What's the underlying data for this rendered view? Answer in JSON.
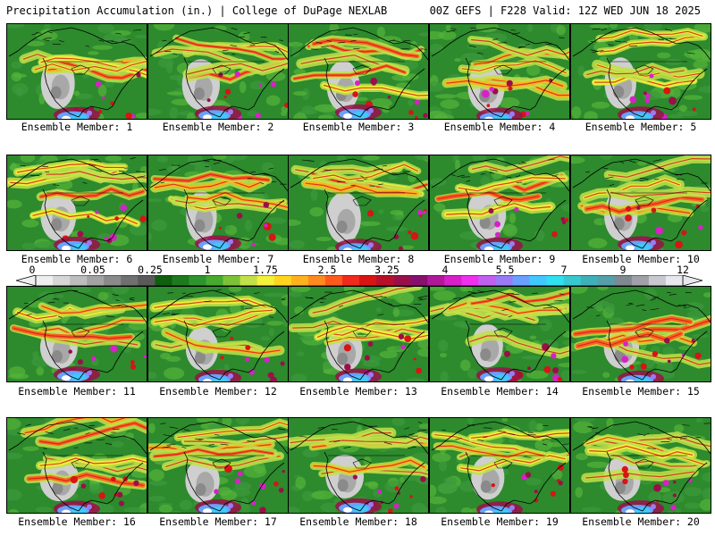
{
  "header": {
    "left": "Precipitation Accumulation (in.) | College of DuPage NEXLAB",
    "right": "00Z GEFS | F228 Valid: 12Z WED JUN 18 2025"
  },
  "panels": [
    {
      "label": "Ensemble Member: 1"
    },
    {
      "label": "Ensemble Member: 2"
    },
    {
      "label": "Ensemble Member: 3"
    },
    {
      "label": "Ensemble Member: 4"
    },
    {
      "label": "Ensemble Member: 5"
    },
    {
      "label": "Ensemble Member: 6"
    },
    {
      "label": "Ensemble Member: 7"
    },
    {
      "label": "Ensemble Member: 8"
    },
    {
      "label": "Ensemble Member: 9"
    },
    {
      "label": "Ensemble Member: 10"
    },
    {
      "label": "Ensemble Member: 11"
    },
    {
      "label": "Ensemble Member: 12"
    },
    {
      "label": "Ensemble Member: 13"
    },
    {
      "label": "Ensemble Member: 14"
    },
    {
      "label": "Ensemble Member: 15"
    },
    {
      "label": "Ensemble Member: 16"
    },
    {
      "label": "Ensemble Member: 17"
    },
    {
      "label": "Ensemble Member: 18"
    },
    {
      "label": "Ensemble Member: 19"
    },
    {
      "label": "Ensemble Member: 20"
    }
  ],
  "legend": {
    "ticks": [
      "0",
      "0.05",
      "0.25",
      "1",
      "1.75",
      "2.5",
      "3.25",
      "4",
      "5.5",
      "7",
      "9",
      "12"
    ],
    "colors": [
      "#eeeeee",
      "#d6d6d6",
      "#bdbdbd",
      "#a3a3a3",
      "#8a8a8a",
      "#707070",
      "#5a5a5a",
      "#0f5f0f",
      "#1e7a1e",
      "#2e942e",
      "#45aa2e",
      "#7cc238",
      "#c2e04a",
      "#f2f23a",
      "#ffd51e",
      "#ffb21e",
      "#ff8a1e",
      "#ff5a1e",
      "#f22a1e",
      "#d81414",
      "#b80f2a",
      "#9a0f4a",
      "#86106e",
      "#b0189a",
      "#d820c8",
      "#f030f0",
      "#c060f0",
      "#9a7af5",
      "#6aa0ff",
      "#40c8ff",
      "#30e0f0",
      "#38c8d0",
      "#40b0b8",
      "#55a0a8",
      "#808890",
      "#a0a0a8",
      "#c8c8d0",
      "#e8e8ee"
    ]
  },
  "map_colors": {
    "land": "#2d8a2d",
    "dry_land": "#3c9a3c",
    "desert": [
      "#cfcfcf",
      "#a8a8a8",
      "#8a8a8a"
    ],
    "rain": [
      "#c2e04a",
      "#f2f23a",
      "#ffb21e",
      "#ff5a1e",
      "#d81414",
      "#9a0f4a",
      "#d820c8"
    ],
    "tropical": [
      "#6aa0ff",
      "#40c8ff",
      "#9a7af5",
      "#ffffff"
    ],
    "coast": "#000000"
  }
}
